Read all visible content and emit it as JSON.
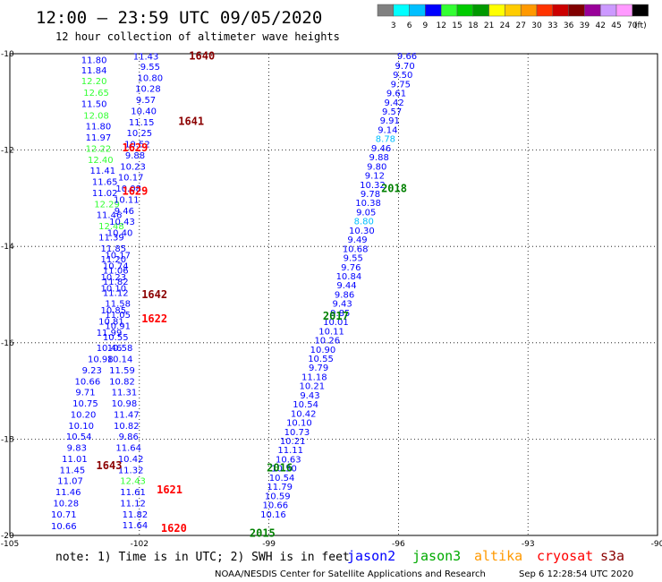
{
  "header": {
    "title": "12:00 – 23:59 UTC 09/05/2020",
    "subtitle": "12 hour collection of altimeter wave heights"
  },
  "colorbar": {
    "labels": [
      "3",
      "6",
      "9",
      "12",
      "15",
      "18",
      "21",
      "24",
      "27",
      "30",
      "33",
      "36",
      "39",
      "42",
      "45",
      "70"
    ],
    "unit": "(ft)",
    "colors": [
      "#808080",
      "#00ffff",
      "#00bfff",
      "#0000ff",
      "#33ff33",
      "#00cc00",
      "#009900",
      "#ffff00",
      "#ffcc00",
      "#ff9900",
      "#ff3300",
      "#cc0000",
      "#800000",
      "#990099",
      "#cc99ff",
      "#ff99ff",
      "#000000"
    ]
  },
  "footer": {
    "note": "note: 1) Time is in UTC; 2) SWH is in feet",
    "credit": "NOAA/NESDIS Center for Satellite Applications and Research",
    "timestamp": "Sep  6 12:28:54 UTC 2020",
    "satellites": [
      {
        "name": "jason2",
        "color": "#0000ff"
      },
      {
        "name": "jason3",
        "color": "#00aa00"
      },
      {
        "name": "altika",
        "color": "#ff9900"
      },
      {
        "name": "cryosat",
        "color": "#ff0000"
      },
      {
        "name": "s3a",
        "color": "#8b0000"
      }
    ]
  },
  "chart_data": {
    "type": "scatter",
    "xlim": [
      -105,
      -90
    ],
    "ylim": [
      -20,
      -10
    ],
    "x_ticks": [
      "-105",
      "-102",
      "-99",
      "-96",
      "-93",
      "-90"
    ],
    "y_ticks": [
      "-10",
      "-12",
      "-14",
      "-16",
      "-18",
      "-20"
    ],
    "grid": true,
    "pass_labels": [
      {
        "text": "1640",
        "lon": -100.85,
        "lat": -10.05,
        "color": "#8b0000"
      },
      {
        "text": "1641",
        "lon": -101.1,
        "lat": -11.4,
        "color": "#8b0000"
      },
      {
        "text": "1629",
        "lon": -102.4,
        "lat": -11.95,
        "color": "#ff0000"
      },
      {
        "text": "1629",
        "lon": -102.4,
        "lat": -12.85,
        "color": "#ff0000"
      },
      {
        "text": "1642",
        "lon": -101.95,
        "lat": -15.0,
        "color": "#8b0000"
      },
      {
        "text": "1622",
        "lon": -101.95,
        "lat": -15.5,
        "color": "#ff0000"
      },
      {
        "text": "1643",
        "lon": -103.0,
        "lat": -18.55,
        "color": "#8b0000"
      },
      {
        "text": "1621",
        "lon": -101.6,
        "lat": -19.05,
        "color": "#ff0000"
      },
      {
        "text": "1620",
        "lon": -101.5,
        "lat": -19.85,
        "color": "#ff0000"
      },
      {
        "text": "2018",
        "lon": -96.4,
        "lat": -12.8,
        "color": "#008000"
      },
      {
        "text": "2017",
        "lon": -97.75,
        "lat": -15.45,
        "color": "#008000"
      },
      {
        "text": "2016",
        "lon": -99.05,
        "lat": -18.6,
        "color": "#008000"
      },
      {
        "text": "2015",
        "lon": -99.45,
        "lat": -19.95,
        "color": "#008000"
      }
    ],
    "series": [
      {
        "color": "#0000ff",
        "points": [
          [
            "11.80",
            -103.05,
            -10.12,
            "#0000ff"
          ],
          [
            "11.84",
            -103.05,
            -10.33,
            "#0000ff"
          ],
          [
            "12.20",
            -103.05,
            -10.56,
            "#33ff33"
          ],
          [
            "12.65",
            -103.0,
            -10.8,
            "#33ff33"
          ],
          [
            "11.50",
            -103.05,
            -11.03,
            "#0000ff"
          ],
          [
            "12.08",
            -103.0,
            -11.27,
            "#33ff33"
          ],
          [
            "11.80",
            -102.95,
            -11.5,
            "#0000ff"
          ],
          [
            "11.97",
            -102.95,
            -11.73,
            "#0000ff"
          ],
          [
            "12.22",
            -102.95,
            -11.96,
            "#33ff33"
          ],
          [
            "12.40",
            -102.9,
            -12.19,
            "#33ff33"
          ],
          [
            "11.41",
            -102.85,
            -12.42,
            "#0000ff"
          ],
          [
            "11.65",
            -102.8,
            -12.65,
            "#0000ff"
          ],
          [
            "11.02",
            -102.8,
            -12.88,
            "#0000ff"
          ],
          [
            "12.29",
            -102.75,
            -13.11,
            "#33ff33"
          ],
          [
            "11.46",
            -102.7,
            -13.34,
            "#0000ff"
          ],
          [
            "12.48",
            -102.65,
            -13.57,
            "#33ff33"
          ],
          [
            "11.39",
            -102.65,
            -13.8,
            "#0000ff"
          ],
          [
            "11.85",
            -102.6,
            -14.03,
            "#0000ff"
          ],
          [
            "11.20",
            -102.6,
            -14.26,
            "#0000ff"
          ],
          [
            "11.06",
            -102.55,
            -14.49,
            "#0000ff"
          ],
          [
            "11.82",
            -102.55,
            -14.72,
            "#0000ff"
          ],
          [
            "11.12",
            -102.55,
            -14.95,
            "#0000ff"
          ],
          [
            "11.58",
            -102.5,
            -15.18,
            "#0000ff"
          ],
          [
            "11.05",
            -102.5,
            -15.41,
            "#0000ff"
          ],
          [
            "10.91",
            -102.5,
            -15.64,
            "#0000ff"
          ],
          [
            "10.46",
            -102.7,
            -16.1,
            "#0000ff"
          ],
          [
            "10.98",
            -102.9,
            -16.33,
            "#0000ff"
          ],
          [
            "9.23",
            -103.1,
            -16.56,
            "#0000ff"
          ],
          [
            "10.66",
            -103.2,
            -16.79,
            "#0000ff"
          ],
          [
            "9.71",
            -103.25,
            -17.02,
            "#0000ff"
          ],
          [
            "10.75",
            -103.25,
            -17.25,
            "#0000ff"
          ],
          [
            "10.20",
            -103.3,
            -17.48,
            "#0000ff"
          ],
          [
            "10.10",
            -103.35,
            -17.71,
            "#0000ff"
          ],
          [
            "10.54",
            -103.4,
            -17.94,
            "#0000ff"
          ],
          [
            "9.83",
            -103.45,
            -18.17,
            "#0000ff"
          ],
          [
            "11.01",
            -103.5,
            -18.4,
            "#0000ff"
          ],
          [
            "11.45",
            -103.55,
            -18.63,
            "#0000ff"
          ],
          [
            "11.07",
            -103.6,
            -18.86,
            "#0000ff"
          ],
          [
            "11.46",
            -103.65,
            -19.09,
            "#0000ff"
          ],
          [
            "10.28",
            -103.7,
            -19.32,
            "#0000ff"
          ],
          [
            "10.71",
            -103.75,
            -19.55,
            "#0000ff"
          ],
          [
            "10.66",
            -103.75,
            -19.8,
            "#0000ff"
          ]
        ]
      },
      {
        "color": "#0000ff",
        "points": [
          [
            "11.43",
            -101.85,
            -10.05,
            "#0000ff"
          ],
          [
            "9.55",
            -101.75,
            -10.26,
            "#0000ff"
          ],
          [
            "10.80",
            -101.75,
            -10.49,
            "#0000ff"
          ],
          [
            "10.28",
            -101.8,
            -10.72,
            "#0000ff"
          ],
          [
            "9.57",
            -101.85,
            -10.95,
            "#0000ff"
          ],
          [
            "10.40",
            -101.9,
            -11.18,
            "#0000ff"
          ],
          [
            "11.15",
            -101.95,
            -11.41,
            "#0000ff"
          ],
          [
            "10.25",
            -102.0,
            -11.64,
            "#0000ff"
          ],
          [
            "10.52",
            -102.05,
            -11.87,
            "#0000ff"
          ],
          [
            "9.88",
            -102.1,
            -12.1,
            "#0000ff"
          ],
          [
            "10.23",
            -102.15,
            -12.33,
            "#0000ff"
          ],
          [
            "10.17",
            -102.2,
            -12.56,
            "#0000ff"
          ],
          [
            "10.08",
            -102.25,
            -12.79,
            "#0000ff"
          ],
          [
            "10.11",
            -102.3,
            -13.02,
            "#0000ff"
          ],
          [
            "9.46",
            -102.35,
            -13.25,
            "#0000ff"
          ],
          [
            "10.43",
            -102.4,
            -13.48,
            "#0000ff"
          ],
          [
            "10.40",
            -102.45,
            -13.71,
            "#0000ff"
          ],
          [
            "10.17",
            -102.5,
            -14.17,
            "#0000ff"
          ],
          [
            "10.74",
            -102.55,
            -14.4,
            "#0000ff"
          ],
          [
            "10.23",
            -102.6,
            -14.63,
            "#0000ff"
          ],
          [
            "10.10",
            -102.6,
            -14.86,
            "#0000ff"
          ],
          [
            "10.85",
            -102.6,
            -15.32,
            "#0000ff"
          ],
          [
            "10.81",
            -102.65,
            -15.55,
            "#0000ff"
          ],
          [
            "11.99",
            -102.7,
            -15.78,
            "#0000ff"
          ],
          [
            "10.55",
            -102.55,
            -15.87,
            "#0000ff"
          ],
          [
            "10.58",
            -102.45,
            -16.1,
            "#0000ff"
          ],
          [
            "10.14",
            -102.45,
            -16.33,
            "#0000ff"
          ],
          [
            "11.59",
            -102.4,
            -16.56,
            "#0000ff"
          ],
          [
            "10.82",
            -102.4,
            -16.79,
            "#0000ff"
          ],
          [
            "11.31",
            -102.35,
            -17.02,
            "#0000ff"
          ],
          [
            "10.98",
            -102.35,
            -17.25,
            "#0000ff"
          ],
          [
            "11.47",
            -102.3,
            -17.48,
            "#0000ff"
          ],
          [
            "10.82",
            -102.3,
            -17.71,
            "#0000ff"
          ],
          [
            "9.86",
            -102.25,
            -17.94,
            "#0000ff"
          ],
          [
            "11.64",
            -102.25,
            -18.17,
            "#0000ff"
          ],
          [
            "10.42",
            -102.2,
            -18.4,
            "#0000ff"
          ],
          [
            "11.32",
            -102.2,
            -18.63,
            "#0000ff"
          ],
          [
            "12.43",
            -102.15,
            -18.86,
            "#33ff33"
          ],
          [
            "11.61",
            -102.15,
            -19.09,
            "#0000ff"
          ],
          [
            "11.12",
            -102.15,
            -19.32,
            "#0000ff"
          ],
          [
            "11.82",
            -102.1,
            -19.55,
            "#0000ff"
          ],
          [
            "11.64",
            -102.1,
            -19.78,
            "#0000ff"
          ]
        ]
      },
      {
        "color": "#0000ff",
        "points": [
          [
            "9.66",
            -95.8,
            -10.04,
            "#0000ff"
          ],
          [
            "9.70",
            -95.85,
            -10.24,
            "#0000ff"
          ],
          [
            "9.50",
            -95.9,
            -10.43,
            "#0000ff"
          ],
          [
            "9.75",
            -95.95,
            -10.62,
            "#0000ff"
          ],
          [
            "9.61",
            -96.05,
            -10.81,
            "#0000ff"
          ],
          [
            "9.42",
            -96.1,
            -11.0,
            "#0000ff"
          ],
          [
            "9.57",
            -96.15,
            -11.19,
            "#0000ff"
          ],
          [
            "9.91",
            -96.2,
            -11.38,
            "#0000ff"
          ],
          [
            "9.14",
            -96.25,
            -11.57,
            "#0000ff"
          ],
          [
            "8.78",
            -96.3,
            -11.76,
            "#00bfff"
          ],
          [
            "9.46",
            -96.4,
            -11.95,
            "#0000ff"
          ],
          [
            "9.88",
            -96.45,
            -12.14,
            "#0000ff"
          ],
          [
            "9.80",
            -96.5,
            -12.33,
            "#0000ff"
          ],
          [
            "9.12",
            -96.55,
            -12.52,
            "#0000ff"
          ],
          [
            "10.32",
            -96.6,
            -12.71,
            "#0000ff"
          ],
          [
            "9.78",
            -96.65,
            -12.9,
            "#0000ff"
          ],
          [
            "10.38",
            -96.7,
            -13.09,
            "#0000ff"
          ],
          [
            "9.05",
            -96.75,
            -13.28,
            "#0000ff"
          ],
          [
            "8.80",
            -96.8,
            -13.47,
            "#00bfff"
          ],
          [
            "10.30",
            -96.85,
            -13.66,
            "#0000ff"
          ],
          [
            "9.49",
            -96.95,
            -13.85,
            "#0000ff"
          ],
          [
            "10.68",
            -97.0,
            -14.04,
            "#0000ff"
          ],
          [
            "9.55",
            -97.05,
            -14.23,
            "#0000ff"
          ],
          [
            "9.76",
            -97.1,
            -14.42,
            "#0000ff"
          ],
          [
            "10.84",
            -97.15,
            -14.61,
            "#0000ff"
          ],
          [
            "9.44",
            -97.2,
            -14.8,
            "#0000ff"
          ],
          [
            "9.86",
            -97.25,
            -14.99,
            "#0000ff"
          ],
          [
            "9.43",
            -97.3,
            -15.18,
            "#0000ff"
          ],
          [
            "9.85",
            -97.35,
            -15.37,
            "#0000ff"
          ],
          [
            "10.01",
            -97.45,
            -15.56,
            "#0000ff"
          ],
          [
            "10.11",
            -97.55,
            -15.75,
            "#0000ff"
          ],
          [
            "10.26",
            -97.65,
            -15.94,
            "#0000ff"
          ],
          [
            "10.90",
            -97.75,
            -16.13,
            "#0000ff"
          ],
          [
            "10.55",
            -97.8,
            -16.32,
            "#0000ff"
          ],
          [
            "9.79",
            -97.85,
            -16.51,
            "#0000ff"
          ],
          [
            "11.18",
            -97.95,
            -16.7,
            "#0000ff"
          ],
          [
            "10.21",
            -98.0,
            -16.89,
            "#0000ff"
          ],
          [
            "9.43",
            -98.05,
            -17.08,
            "#0000ff"
          ],
          [
            "10.54",
            -98.15,
            -17.27,
            "#0000ff"
          ],
          [
            "10.42",
            -98.2,
            -17.46,
            "#0000ff"
          ],
          [
            "10.10",
            -98.3,
            -17.65,
            "#0000ff"
          ],
          [
            "10.73",
            -98.35,
            -17.84,
            "#0000ff"
          ],
          [
            "10.21",
            -98.45,
            -18.03,
            "#0000ff"
          ],
          [
            "11.11",
            -98.5,
            -18.22,
            "#0000ff"
          ],
          [
            "10.63",
            -98.55,
            -18.41,
            "#0000ff"
          ],
          [
            "10.50",
            -98.65,
            -18.6,
            "#0000ff"
          ],
          [
            "10.54",
            -98.7,
            -18.79,
            "#0000ff"
          ],
          [
            "11.79",
            -98.75,
            -18.98,
            "#0000ff"
          ],
          [
            "10.59",
            -98.8,
            -19.17,
            "#0000ff"
          ],
          [
            "10.66",
            -98.85,
            -19.36,
            "#0000ff"
          ],
          [
            "10.16",
            -98.9,
            -19.55,
            "#0000ff"
          ]
        ]
      }
    ]
  }
}
